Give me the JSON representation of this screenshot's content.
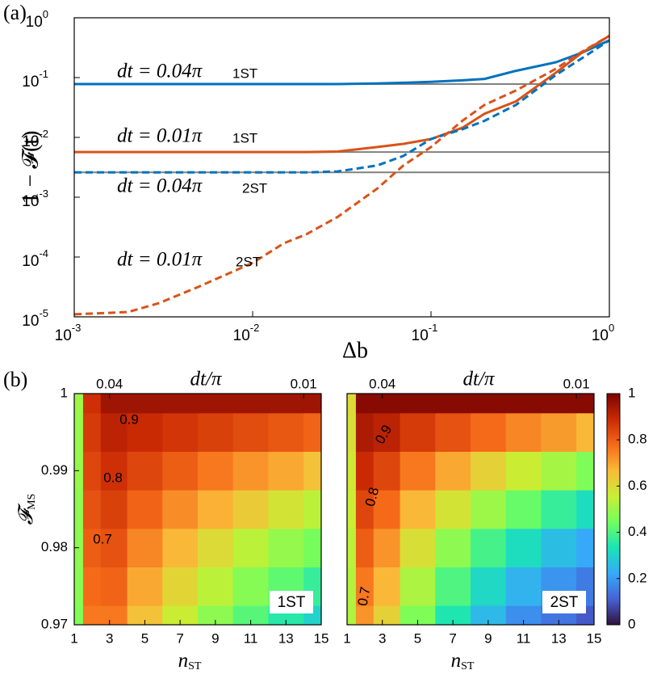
{
  "panels": [
    "(a)",
    "(b)"
  ],
  "chart_data": [
    {
      "type": "line",
      "xlabel": "Δb",
      "ylabel": "1 − 𝓕(t)",
      "log_x": true,
      "log_y": true,
      "xlim": [
        0.001,
        1
      ],
      "ylim": [
        1e-05,
        1
      ],
      "xticks": [
        {
          "value": 0.001,
          "label": "10",
          "exponent": "-3"
        },
        {
          "value": 0.01,
          "label": "10",
          "exponent": "-2"
        },
        {
          "value": 0.1,
          "label": "10",
          "exponent": "-1"
        },
        {
          "value": 1,
          "label": "10",
          "exponent": "0"
        }
      ],
      "yticks": [
        {
          "value": 1e-05,
          "label": "10",
          "exponent": "-5"
        },
        {
          "value": 0.0001,
          "label": "10",
          "exponent": "-4"
        },
        {
          "value": 0.001,
          "label": "10",
          "exponent": "-3"
        },
        {
          "value": 0.01,
          "label": "10",
          "exponent": "-2"
        },
        {
          "value": 0.1,
          "label": "10",
          "exponent": "-1"
        },
        {
          "value": 1,
          "label": "10",
          "exponent": "0"
        }
      ],
      "x": [
        0.001,
        0.002,
        0.003,
        0.005,
        0.007,
        0.01,
        0.015,
        0.02,
        0.03,
        0.05,
        0.07,
        0.1,
        0.15,
        0.2,
        0.3,
        0.5,
        0.7,
        1
      ],
      "reference_lines": [
        0.078,
        0.0057,
        0.0026
      ],
      "reference_color": "#808080",
      "series": [
        {
          "color": "#0072bd",
          "dash": false,
          "values": [
            0.078,
            0.078,
            0.078,
            0.078,
            0.078,
            0.078,
            0.078,
            0.078,
            0.078,
            0.08,
            0.082,
            0.085,
            0.09,
            0.095,
            0.13,
            0.18,
            0.26,
            0.42
          ]
        },
        {
          "color": "#d95319",
          "dash": false,
          "values": [
            0.0057,
            0.0057,
            0.0057,
            0.0057,
            0.0057,
            0.0057,
            0.0057,
            0.0057,
            0.0058,
            0.0069,
            0.0078,
            0.0094,
            0.0145,
            0.025,
            0.04,
            0.12,
            0.26,
            0.5
          ]
        },
        {
          "color": "#0072bd",
          "dash": true,
          "values": [
            0.0026,
            0.0026,
            0.0026,
            0.0026,
            0.0026,
            0.0026,
            0.0026,
            0.0026,
            0.0027,
            0.0034,
            0.0049,
            0.0094,
            0.0137,
            0.019,
            0.035,
            0.11,
            0.21,
            0.42
          ]
        },
        {
          "color": "#d95319",
          "dash": true,
          "values": [
            1.1e-05,
            1.2e-05,
            1.7e-05,
            3.2e-05,
            5e-05,
            8e-05,
            0.00017,
            0.00024,
            0.00047,
            0.0014,
            0.0034,
            0.0069,
            0.019,
            0.035,
            0.061,
            0.14,
            0.27,
            0.5
          ]
        }
      ],
      "annotations": [
        {
          "text": "dt = 0.04π",
          "tag": "1ST"
        },
        {
          "text": "dt = 0.01π",
          "tag": "1ST"
        },
        {
          "text": "dt = 0.04π",
          "tag": "2ST"
        },
        {
          "text": "dt = 0.01π",
          "tag": "2ST"
        }
      ]
    },
    {
      "type": "heatmap",
      "name": "1ST",
      "xlabel": "n",
      "xlabel_sub": "ST",
      "ylabel": "𝓕",
      "ylabel_sub": "MS",
      "top_label": "dt/π",
      "top_ticks": [
        {
          "value": 3,
          "label": "0.04"
        },
        {
          "value": 14,
          "label": "0.01"
        }
      ],
      "xlim": [
        1,
        15
      ],
      "ylim": [
        0.97,
        1
      ],
      "xticks": [
        1,
        3,
        5,
        7,
        9,
        11,
        13,
        15
      ],
      "yticks": [
        0.97,
        0.98,
        0.99,
        1
      ],
      "x": [
        1,
        2,
        3,
        5,
        7,
        9,
        11,
        13,
        15
      ],
      "y": [
        0.97,
        0.975,
        0.98,
        0.985,
        0.99,
        0.995,
        1
      ],
      "z": [
        [
          0.46,
          0.76,
          0.76,
          0.65,
          0.56,
          0.48,
          0.41,
          0.35,
          0.3
        ],
        [
          0.47,
          0.78,
          0.79,
          0.69,
          0.61,
          0.54,
          0.47,
          0.42,
          0.37
        ],
        [
          0.48,
          0.8,
          0.82,
          0.74,
          0.67,
          0.6,
          0.54,
          0.49,
          0.45
        ],
        [
          0.48,
          0.82,
          0.85,
          0.79,
          0.73,
          0.68,
          0.63,
          0.58,
          0.54
        ],
        [
          0.49,
          0.84,
          0.88,
          0.84,
          0.8,
          0.76,
          0.72,
          0.69,
          0.65
        ],
        [
          0.49,
          0.86,
          0.91,
          0.89,
          0.87,
          0.85,
          0.83,
          0.81,
          0.79
        ],
        [
          0.5,
          0.88,
          0.95,
          0.95,
          0.95,
          0.95,
          0.95,
          0.95,
          0.95
        ]
      ],
      "zlim": [
        0,
        1
      ],
      "colorscale": [
        "#30123b",
        "#4662d7",
        "#36aaf9",
        "#1ae4b6",
        "#72fe5e",
        "#c8ef34",
        "#faba39",
        "#f66b19",
        "#ca2a04",
        "#7a0403"
      ],
      "contour_labels": [
        "0.9",
        "0.8",
        "0.7"
      ]
    },
    {
      "type": "heatmap",
      "name": "2ST",
      "xlabel": "n",
      "xlabel_sub": "ST",
      "top_label": "dt/π",
      "top_ticks": [
        {
          "value": 3,
          "label": "0.04"
        },
        {
          "value": 14,
          "label": "0.01"
        }
      ],
      "xlim": [
        1,
        15
      ],
      "ylim": [
        0.97,
        1
      ],
      "xticks": [
        1,
        3,
        5,
        7,
        9,
        11,
        13,
        15
      ],
      "x": [
        1,
        2,
        3,
        5,
        7,
        9,
        11,
        13,
        15
      ],
      "y": [
        0.97,
        0.975,
        0.98,
        0.985,
        0.99,
        0.995,
        1
      ],
      "z": [
        [
          0.52,
          0.72,
          0.62,
          0.46,
          0.34,
          0.25,
          0.18,
          0.14,
          0.1
        ],
        [
          0.53,
          0.76,
          0.67,
          0.52,
          0.4,
          0.31,
          0.24,
          0.19,
          0.15
        ],
        [
          0.54,
          0.8,
          0.72,
          0.59,
          0.48,
          0.39,
          0.32,
          0.26,
          0.22
        ],
        [
          0.56,
          0.84,
          0.78,
          0.67,
          0.58,
          0.5,
          0.43,
          0.37,
          0.32
        ],
        [
          0.57,
          0.89,
          0.84,
          0.76,
          0.69,
          0.62,
          0.56,
          0.51,
          0.46
        ],
        [
          0.59,
          0.93,
          0.91,
          0.86,
          0.82,
          0.78,
          0.74,
          0.71,
          0.67
        ],
        [
          0.6,
          0.98,
          0.98,
          0.98,
          0.98,
          0.98,
          0.98,
          0.98,
          0.98
        ]
      ],
      "zlim": [
        0,
        1
      ],
      "colorscale": [
        "#30123b",
        "#4662d7",
        "#36aaf9",
        "#1ae4b6",
        "#72fe5e",
        "#c8ef34",
        "#faba39",
        "#f66b19",
        "#ca2a04",
        "#7a0403"
      ],
      "contour_labels": [
        "0.9",
        "0.8",
        "0.7"
      ],
      "colorbar_ticks": [
        0,
        0.2,
        0.4,
        0.6,
        0.8,
        1
      ]
    }
  ]
}
